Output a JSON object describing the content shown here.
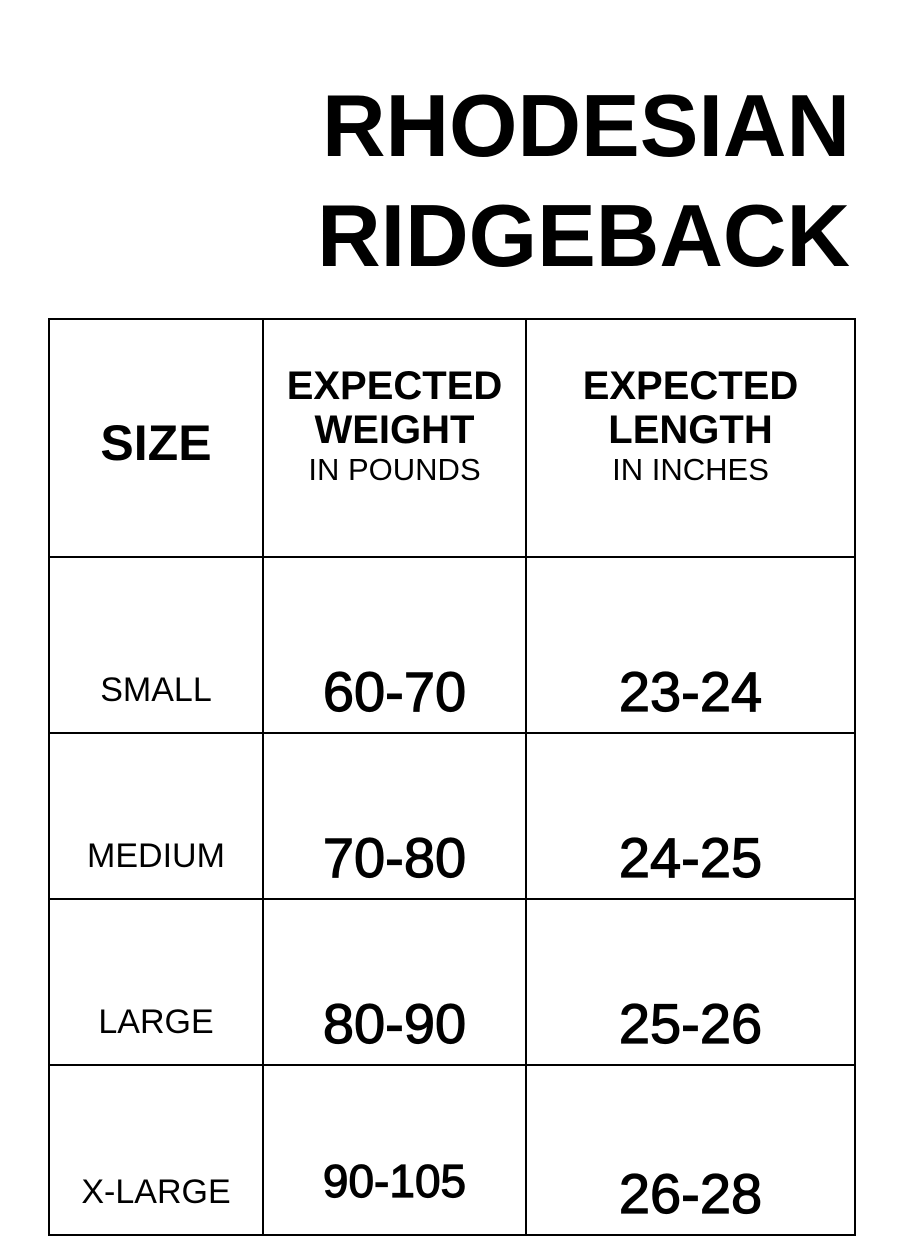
{
  "title": {
    "line1": "RHODESIAN",
    "line2": "RIDGEBACK"
  },
  "table": {
    "headers": [
      {
        "main": "SIZE"
      },
      {
        "main1": "EXPECTED",
        "main2": "WEIGHT",
        "sub": "IN POUNDS"
      },
      {
        "main1": "EXPECTED",
        "main2": "LENGTH",
        "sub": "IN INCHES"
      }
    ],
    "rows": [
      {
        "size": "SMALL",
        "weight": "60-70",
        "length": "23-24"
      },
      {
        "size": "MEDIUM",
        "weight": "70-80",
        "length": "24-25"
      },
      {
        "size": "LARGE",
        "weight": "80-90",
        "length": "25-26"
      },
      {
        "size": "X-LARGE",
        "weight": "90-105",
        "length": "26-28"
      }
    ]
  }
}
